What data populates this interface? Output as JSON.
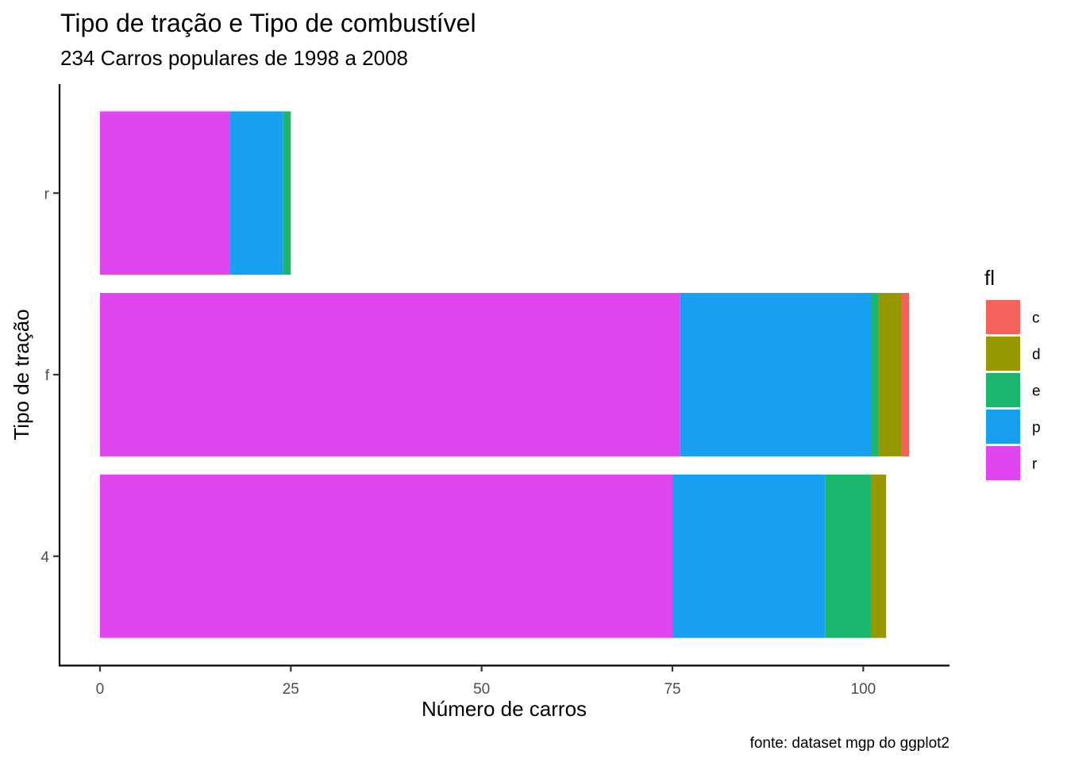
{
  "chart_data": {
    "type": "bar",
    "orientation": "horizontal",
    "stacked": true,
    "title": "Tipo de tração e Tipo de combustível",
    "subtitle": "234 Carros populares de 1998 a 2008",
    "xlabel": "Número de carros",
    "ylabel": "Tipo de tração",
    "caption": "fonte: dataset mgp do ggplot2",
    "categories": [
      "4",
      "f",
      "r"
    ],
    "xlim": [
      -5.3,
      111.3
    ],
    "x_ticks": [
      0,
      25,
      50,
      75,
      100
    ],
    "x_tick_labels": [
      "0",
      "25",
      "50",
      "75",
      "100"
    ],
    "stack_order": [
      "r",
      "p",
      "e",
      "d",
      "c"
    ],
    "series": [
      {
        "name": "r",
        "color": "#E046F0",
        "values": [
          75,
          76,
          17
        ]
      },
      {
        "name": "p",
        "color": "#17A0F0",
        "values": [
          20,
          25,
          7
        ]
      },
      {
        "name": "e",
        "color": "#1BB56E",
        "values": [
          6,
          1,
          1
        ]
      },
      {
        "name": "d",
        "color": "#979800",
        "values": [
          2,
          3,
          0
        ]
      },
      {
        "name": "c",
        "color": "#F5625C",
        "values": [
          0,
          1,
          0
        ]
      }
    ],
    "legend": {
      "title": "fl",
      "position": "right",
      "entries": [
        "c",
        "d",
        "e",
        "p",
        "r"
      ]
    },
    "grid": false
  }
}
